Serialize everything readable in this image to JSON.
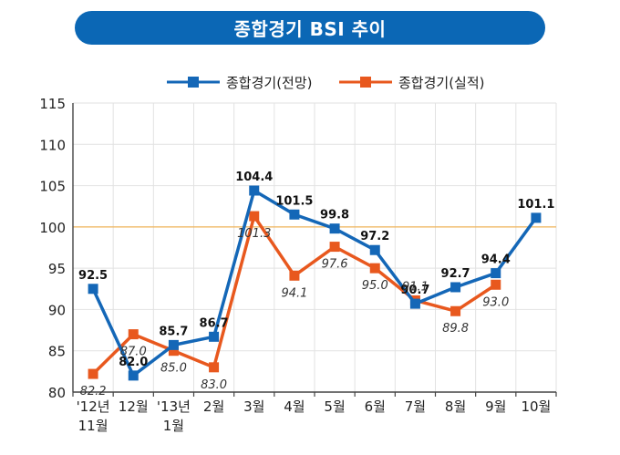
{
  "title": "종합경기 BSI 추이",
  "colors": {
    "banner": "#0b67b5",
    "series_forecast": "#1467b7",
    "series_actual": "#e8581e",
    "reference_line": "#f0b45a",
    "grid": "#e2e2e2",
    "axis_text": "#222222"
  },
  "chart_data": {
    "type": "line",
    "title": "종합경기 BSI 추이",
    "xlabel": "",
    "ylabel": "",
    "ylim": [
      80,
      115
    ],
    "yticks": [
      80,
      85,
      90,
      95,
      100,
      105,
      110,
      115
    ],
    "reference_line": 100,
    "grid": true,
    "legend_position": "top-center",
    "categories": [
      [
        "'12년",
        "11월"
      ],
      [
        "12월"
      ],
      [
        "'13년",
        "1월"
      ],
      [
        "2월"
      ],
      [
        "3월"
      ],
      [
        "4월"
      ],
      [
        "5월"
      ],
      [
        "6월"
      ],
      [
        "7월"
      ],
      [
        "8월"
      ],
      [
        "9월"
      ],
      [
        "10월"
      ]
    ],
    "series": [
      {
        "name": "종합경기(전망)",
        "key": "forecast",
        "values": [
          92.5,
          82.0,
          85.7,
          86.7,
          104.4,
          101.5,
          99.8,
          97.2,
          90.7,
          92.7,
          94.4,
          101.1
        ],
        "labels": [
          "92.5",
          "82.0",
          "85.7",
          "86.7",
          "104.4",
          "101.5",
          "99.8",
          "97.2",
          "90.7",
          "92.7",
          "94.4",
          "101.1"
        ]
      },
      {
        "name": "종합경기(실적)",
        "key": "actual",
        "values": [
          82.2,
          87.0,
          85.0,
          83.0,
          101.3,
          94.1,
          97.6,
          95.0,
          91.1,
          89.8,
          93.0,
          null
        ],
        "labels": [
          "82.2",
          "87.0",
          "85.0",
          "83.0",
          "101.3",
          "94.1",
          "97.6",
          "95.0",
          "91.1",
          "89.8",
          "93.0",
          null
        ]
      }
    ]
  }
}
